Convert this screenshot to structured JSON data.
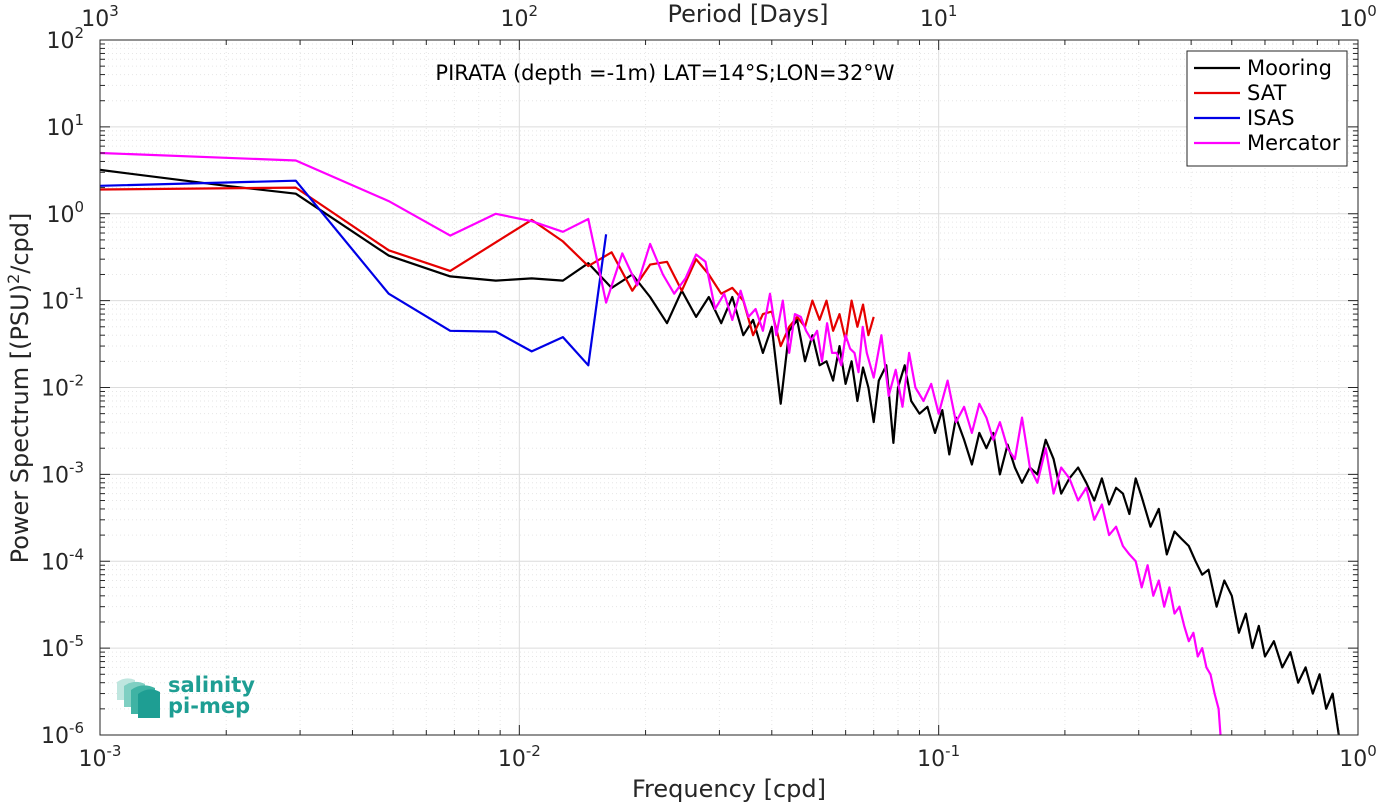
{
  "chart_data": {
    "type": "line",
    "title": "",
    "annotation": "PIRATA (depth =-1m) LAT=14°S;LON=32°W",
    "xlabel": "Frequency [cpd]",
    "ylabel_main": "Power Spectrum [(PSU)",
    "ylabel_sup": "2",
    "ylabel_tail": "/cpd]",
    "top_xlabel": "Period [Days]",
    "xscale": "log",
    "yscale": "log",
    "xlim": [
      0.001,
      1
    ],
    "ylim": [
      1e-06,
      100
    ],
    "grid": true,
    "legend_location": "top-right",
    "x_ticks": [
      {
        "value": 0.001,
        "base": "10",
        "exp": "-3"
      },
      {
        "value": 0.01,
        "base": "10",
        "exp": "-2"
      },
      {
        "value": 0.1,
        "base": "10",
        "exp": "-1"
      },
      {
        "value": 1,
        "base": "10",
        "exp": "0"
      }
    ],
    "top_ticks": [
      {
        "value": 0.001,
        "base": "10",
        "exp": "3"
      },
      {
        "value": 0.01,
        "base": "10",
        "exp": "2"
      },
      {
        "value": 0.1,
        "base": "10",
        "exp": "1"
      },
      {
        "value": 1,
        "base": "10",
        "exp": "0"
      }
    ],
    "y_ticks": [
      {
        "value": 100,
        "base": "10",
        "exp": "2"
      },
      {
        "value": 10,
        "base": "10",
        "exp": "1"
      },
      {
        "value": 1,
        "base": "10",
        "exp": "0"
      },
      {
        "value": 0.1,
        "base": "10",
        "exp": "-1"
      },
      {
        "value": 0.01,
        "base": "10",
        "exp": "-2"
      },
      {
        "value": 0.001,
        "base": "10",
        "exp": "-3"
      },
      {
        "value": 0.0001,
        "base": "10",
        "exp": "-4"
      },
      {
        "value": 1e-05,
        "base": "10",
        "exp": "-5"
      },
      {
        "value": 1e-06,
        "base": "10",
        "exp": "-6"
      }
    ],
    "series": [
      {
        "name": "Mooring",
        "color": "#000000",
        "x": [
          0.001,
          0.002,
          0.00293,
          0.00488,
          0.00684,
          0.00879,
          0.0107,
          0.0127,
          0.0146,
          0.0166,
          0.0186,
          0.0205,
          0.0225,
          0.0244,
          0.0264,
          0.0283,
          0.0303,
          0.0322,
          0.0342,
          0.0361,
          0.0381,
          0.04,
          0.042,
          0.044,
          0.046,
          0.048,
          0.05,
          0.052,
          0.054,
          0.056,
          0.058,
          0.06,
          0.062,
          0.064,
          0.066,
          0.068,
          0.07,
          0.072,
          0.075,
          0.078,
          0.08,
          0.083,
          0.086,
          0.09,
          0.094,
          0.098,
          0.102,
          0.106,
          0.11,
          0.115,
          0.12,
          0.125,
          0.13,
          0.135,
          0.14,
          0.146,
          0.152,
          0.158,
          0.165,
          0.172,
          0.18,
          0.188,
          0.196,
          0.205,
          0.215,
          0.225,
          0.235,
          0.245,
          0.255,
          0.265,
          0.275,
          0.285,
          0.295,
          0.305,
          0.32,
          0.335,
          0.35,
          0.365,
          0.38,
          0.395,
          0.41,
          0.425,
          0.44,
          0.46,
          0.48,
          0.5,
          0.52,
          0.54,
          0.56,
          0.58,
          0.6,
          0.63,
          0.66,
          0.69,
          0.72,
          0.75,
          0.78,
          0.81,
          0.84,
          0.87,
          0.9
        ],
        "y": [
          3.2,
          2.1,
          1.7,
          0.33,
          0.19,
          0.17,
          0.18,
          0.17,
          0.27,
          0.14,
          0.2,
          0.11,
          0.055,
          0.13,
          0.065,
          0.11,
          0.055,
          0.11,
          0.04,
          0.06,
          0.025,
          0.05,
          0.0065,
          0.045,
          0.06,
          0.02,
          0.04,
          0.018,
          0.02,
          0.012,
          0.03,
          0.011,
          0.02,
          0.007,
          0.017,
          0.01,
          0.004,
          0.012,
          0.018,
          0.0023,
          0.01,
          0.018,
          0.007,
          0.005,
          0.006,
          0.003,
          0.0055,
          0.0017,
          0.0045,
          0.0025,
          0.0013,
          0.003,
          0.002,
          0.003,
          0.001,
          0.0022,
          0.0012,
          0.0008,
          0.0012,
          0.001,
          0.0025,
          0.0015,
          0.0006,
          0.0009,
          0.0012,
          0.0008,
          0.0005,
          0.0009,
          0.00045,
          0.0007,
          0.0006,
          0.00035,
          0.0009,
          0.00055,
          0.00025,
          0.0004,
          0.00012,
          0.00022,
          0.00018,
          0.00015,
          0.0001,
          7e-05,
          8e-05,
          3e-05,
          6e-05,
          4e-05,
          1.5e-05,
          2.5e-05,
          1e-05,
          1.8e-05,
          8e-06,
          1.2e-05,
          6e-06,
          9e-06,
          4e-06,
          6e-06,
          3e-06,
          5e-06,
          2e-06,
          3e-06,
          1e-06
        ]
      },
      {
        "name": "SAT",
        "color": "#e60000",
        "x": [
          0.001,
          0.00293,
          0.00488,
          0.00684,
          0.0107,
          0.0127,
          0.0146,
          0.0166,
          0.0186,
          0.0205,
          0.0225,
          0.0244,
          0.0264,
          0.0283,
          0.0303,
          0.0322,
          0.0342,
          0.0361,
          0.0381,
          0.04,
          0.042,
          0.044,
          0.046,
          0.048,
          0.05,
          0.052,
          0.054,
          0.056,
          0.058,
          0.06,
          0.062,
          0.064,
          0.066,
          0.068,
          0.07
        ],
        "y": [
          1.9,
          2.0,
          0.38,
          0.22,
          0.85,
          0.48,
          0.25,
          0.36,
          0.13,
          0.26,
          0.28,
          0.13,
          0.3,
          0.2,
          0.12,
          0.14,
          0.1,
          0.04,
          0.07,
          0.075,
          0.03,
          0.05,
          0.065,
          0.05,
          0.1,
          0.06,
          0.1,
          0.045,
          0.07,
          0.035,
          0.1,
          0.05,
          0.09,
          0.04,
          0.065
        ]
      },
      {
        "name": "ISAS",
        "color": "#0000e6",
        "x": [
          0.001,
          0.00293,
          0.00488,
          0.00684,
          0.00879,
          0.0107,
          0.0127,
          0.0146,
          0.0161
        ],
        "y": [
          2.1,
          2.4,
          0.12,
          0.045,
          0.044,
          0.026,
          0.038,
          0.018,
          0.58
        ]
      },
      {
        "name": "Mercator",
        "color": "#ff00ff",
        "x": [
          0.001,
          0.00293,
          0.00488,
          0.00684,
          0.00879,
          0.0107,
          0.0127,
          0.0146,
          0.0161,
          0.0176,
          0.0191,
          0.0205,
          0.022,
          0.0234,
          0.0249,
          0.0264,
          0.0278,
          0.0293,
          0.0308,
          0.0322,
          0.0337,
          0.0352,
          0.0366,
          0.0381,
          0.0396,
          0.041,
          0.0425,
          0.044,
          0.0454,
          0.0469,
          0.0483,
          0.0498,
          0.0513,
          0.0527,
          0.0542,
          0.0557,
          0.0571,
          0.0586,
          0.06,
          0.0615,
          0.063,
          0.0644,
          0.0659,
          0.0674,
          0.07,
          0.073,
          0.076,
          0.079,
          0.082,
          0.085,
          0.088,
          0.092,
          0.096,
          0.1,
          0.105,
          0.11,
          0.115,
          0.12,
          0.125,
          0.13,
          0.135,
          0.14,
          0.146,
          0.152,
          0.158,
          0.165,
          0.172,
          0.18,
          0.188,
          0.196,
          0.205,
          0.215,
          0.225,
          0.235,
          0.245,
          0.255,
          0.265,
          0.275,
          0.285,
          0.295,
          0.305,
          0.315,
          0.325,
          0.335,
          0.345,
          0.355,
          0.365,
          0.375,
          0.385,
          0.395,
          0.405,
          0.415,
          0.425,
          0.435,
          0.445,
          0.455,
          0.465,
          0.47
        ],
        "y": [
          5.0,
          4.1,
          1.4,
          0.56,
          1.0,
          0.82,
          0.62,
          0.87,
          0.095,
          0.35,
          0.15,
          0.45,
          0.2,
          0.12,
          0.18,
          0.34,
          0.28,
          0.08,
          0.12,
          0.06,
          0.13,
          0.065,
          0.08,
          0.045,
          0.12,
          0.04,
          0.1,
          0.025,
          0.07,
          0.065,
          0.045,
          0.035,
          0.045,
          0.02,
          0.055,
          0.025,
          0.025,
          0.018,
          0.04,
          0.028,
          0.025,
          0.015,
          0.05,
          0.025,
          0.013,
          0.04,
          0.008,
          0.016,
          0.006,
          0.025,
          0.01,
          0.007,
          0.011,
          0.005,
          0.012,
          0.004,
          0.006,
          0.003,
          0.0065,
          0.0045,
          0.0025,
          0.004,
          0.002,
          0.0015,
          0.0045,
          0.0012,
          0.0008,
          0.002,
          0.0006,
          0.0012,
          0.0009,
          0.0005,
          0.0007,
          0.0003,
          0.00045,
          0.0002,
          0.00025,
          0.00015,
          0.00012,
          0.0001,
          5e-05,
          9e-05,
          4e-05,
          6e-05,
          3e-05,
          5e-05,
          2.5e-05,
          3e-05,
          1.8e-05,
          1.2e-05,
          1.5e-05,
          8e-06,
          1e-05,
          6e-06,
          5e-06,
          3e-06,
          2e-06,
          1e-06
        ]
      }
    ]
  },
  "logo": {
    "line1": "salinity",
    "line2": "pi-mep",
    "color": "#1e9e93"
  }
}
